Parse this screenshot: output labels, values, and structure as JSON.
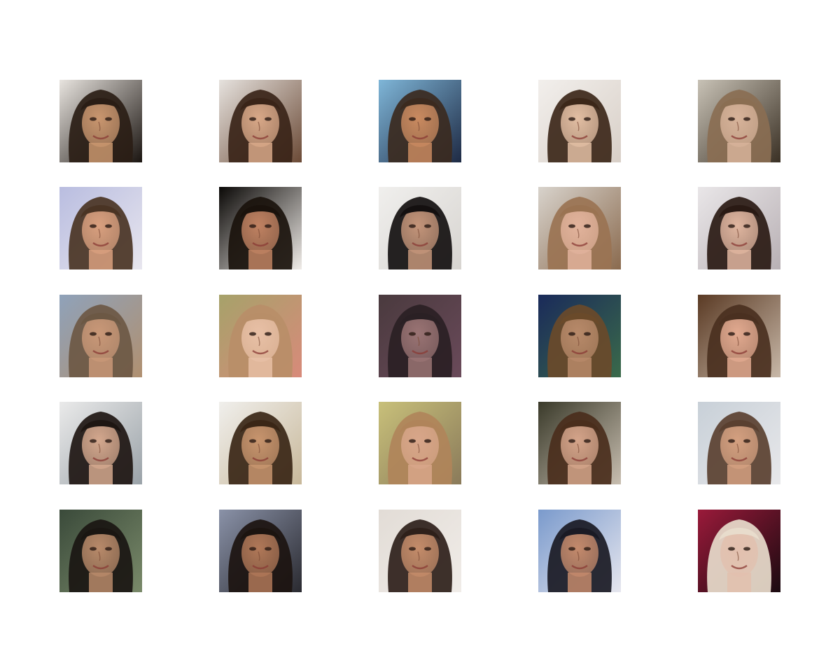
{
  "grid": {
    "rows": 5,
    "cols": 5,
    "samples": [
      {
        "bg": "#e8e4df",
        "bg2": "#1a1410",
        "skin": "#c9966f",
        "hair": "#2a1d15"
      },
      {
        "bg": "#e6e2de",
        "bg2": "#6b4a36",
        "skin": "#d8a888",
        "hair": "#3a2418"
      },
      {
        "bg": "#7fb6d8",
        "bg2": "#1e2a44",
        "skin": "#c98a60",
        "hair": "#3b2a1f"
      },
      {
        "bg": "#f2efec",
        "bg2": "#d8cfc7",
        "skin": "#e2bea3",
        "hair": "#3c2719"
      },
      {
        "bg": "#c8c2b6",
        "bg2": "#3a3024",
        "skin": "#d7b39a",
        "hair": "#8a6e52"
      },
      {
        "bg": "#b9bde0",
        "bg2": "#e8e6ee",
        "skin": "#d9a07f",
        "hair": "#4a3424"
      },
      {
        "bg": "#0a0806",
        "bg2": "#f0ece8",
        "skin": "#c08262",
        "hair": "#1a120c"
      },
      {
        "bg": "#f0efed",
        "bg2": "#d7d4d0",
        "skin": "#c4957a",
        "hair": "#141010"
      },
      {
        "bg": "#d8d3cc",
        "bg2": "#8a6a4e",
        "skin": "#e2b39c",
        "hair": "#9a7352"
      },
      {
        "bg": "#e9e6e8",
        "bg2": "#b8b0b4",
        "skin": "#e0b6a0",
        "hair": "#2a1a14"
      },
      {
        "bg": "#8fa2ba",
        "bg2": "#b09070",
        "skin": "#c99878",
        "hair": "#6c5844"
      },
      {
        "bg": "#a6a26a",
        "bg2": "#d88a7a",
        "skin": "#e8c0a6",
        "hair": "#b88e68"
      },
      {
        "bg": "#4a3a3e",
        "bg2": "#6a4a5a",
        "skin": "#9a7474",
        "hair": "#2a2024"
      },
      {
        "bg": "#1a2a5a",
        "bg2": "#3a6a4a",
        "skin": "#b88a6a",
        "hair": "#6a4a2a"
      },
      {
        "bg": "#5a3a24",
        "bg2": "#c8b8a8",
        "skin": "#e2aa90",
        "hair": "#4a3020"
      },
      {
        "bg": "#eaeaea",
        "bg2": "#9aa2a8",
        "skin": "#d4a88e",
        "hair": "#1e1612"
      },
      {
        "bg": "#f0efec",
        "bg2": "#c8b89a",
        "skin": "#c8956e",
        "hair": "#3a2616"
      },
      {
        "bg": "#c8c07a",
        "bg2": "#8a7a5a",
        "skin": "#d8a68a",
        "hair": "#b0845a"
      },
      {
        "bg": "#3a3a2a",
        "bg2": "#c8beb0",
        "skin": "#d4a48a",
        "hair": "#4a2e1c"
      },
      {
        "bg": "#c8d0d8",
        "bg2": "#e8e8ea",
        "skin": "#d4a080",
        "hair": "#5a4030"
      },
      {
        "bg": "#3a4a3a",
        "bg2": "#7a8a6a",
        "skin": "#b88a6a",
        "hair": "#1a1612"
      },
      {
        "bg": "#8a92a8",
        "bg2": "#2a2a30",
        "skin": "#b07858",
        "hair": "#1c1410"
      },
      {
        "bg": "#e2dcd6",
        "bg2": "#f0ece8",
        "skin": "#c48c6a",
        "hair": "#2e201a"
      },
      {
        "bg": "#7a9acc",
        "bg2": "#e6e6ee",
        "skin": "#c48a6c",
        "hair": "#1a1a24"
      },
      {
        "bg": "#9a1a3a",
        "bg2": "#1a0a10",
        "skin": "#e2c0ae",
        "hair": "#e8dccc"
      }
    ]
  }
}
